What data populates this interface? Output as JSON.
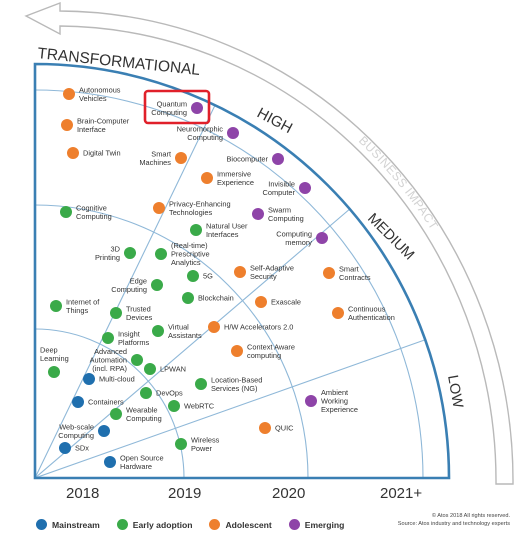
{
  "diagram": {
    "maturity_levels": {
      "transformational": "TRANSFORMATIONAL",
      "high": "HIGH",
      "medium": "MEDIUM",
      "low": "LOW"
    },
    "business_impact_label": "BUSINESS IMPACT",
    "years": [
      "2018",
      "2019",
      "2020",
      "2021+"
    ],
    "colors": {
      "mainstream": "#1f6fae",
      "early_adoption": "#3aaa49",
      "adolescent": "#ee7f2d",
      "emerging": "#8e44a8",
      "highlight_box": "#e0202a",
      "frame": "#3a7fb3",
      "grid": "#8fb8d8"
    },
    "technologies": [
      {
        "name": "Autonomous Vehicles",
        "lines": [
          "Autonomous",
          "Vehicles"
        ],
        "category": "adolescent"
      },
      {
        "name": "Brain-Computer Interface",
        "lines": [
          "Brain-Computer",
          "Interface"
        ],
        "category": "adolescent"
      },
      {
        "name": "Digital Twin",
        "lines": [
          "Digital Twin"
        ],
        "category": "adolescent"
      },
      {
        "name": "Quantum Computing",
        "lines": [
          "Quantum",
          "Computing"
        ],
        "category": "emerging",
        "highlighted": true
      },
      {
        "name": "Neuromorphic Computing",
        "lines": [
          "Neuromorphic",
          "Computing"
        ],
        "category": "emerging"
      },
      {
        "name": "Smart Machines",
        "lines": [
          "Smart",
          "Machines"
        ],
        "category": "adolescent"
      },
      {
        "name": "Biocomputer",
        "lines": [
          "Biocomputer"
        ],
        "category": "emerging"
      },
      {
        "name": "Immersive Experience",
        "lines": [
          "Immersive",
          "Experience"
        ],
        "category": "adolescent"
      },
      {
        "name": "Invisible Computer",
        "lines": [
          "Invisible",
          "Computer"
        ],
        "category": "emerging"
      },
      {
        "name": "Cognitive Computing",
        "lines": [
          "Cognitive",
          "Computing"
        ],
        "category": "early_adoption"
      },
      {
        "name": "Privacy-Enhancing Technologies",
        "lines": [
          "Privacy-Enhancing",
          "Technologies"
        ],
        "category": "adolescent"
      },
      {
        "name": "Swarm Computing",
        "lines": [
          "Swarm",
          "Computing"
        ],
        "category": "emerging"
      },
      {
        "name": "Natural User Interfaces",
        "lines": [
          "Natural User",
          "Interfaces"
        ],
        "category": "early_adoption"
      },
      {
        "name": "Computing memory",
        "lines": [
          "Computing",
          "memory"
        ],
        "category": "emerging"
      },
      {
        "name": "3D Printing",
        "lines": [
          "3D",
          "Printing"
        ],
        "category": "early_adoption"
      },
      {
        "name": "(Real-time) Prescriptive Analytics",
        "lines": [
          "(Real-time)",
          "Prescriptive",
          "Analytics"
        ],
        "category": "early_adoption"
      },
      {
        "name": "5G",
        "lines": [
          "5G"
        ],
        "category": "early_adoption"
      },
      {
        "name": "Self-Adaptive Security",
        "lines": [
          "Self-Adaptive",
          "Security"
        ],
        "category": "adolescent"
      },
      {
        "name": "Smart Contracts",
        "lines": [
          "Smart",
          "Contracts"
        ],
        "category": "adolescent"
      },
      {
        "name": "Edge Computing",
        "lines": [
          "Edge",
          "Computing"
        ],
        "category": "early_adoption"
      },
      {
        "name": "Blockchain",
        "lines": [
          "Blockchain"
        ],
        "category": "early_adoption"
      },
      {
        "name": "Exascale",
        "lines": [
          "Exascale"
        ],
        "category": "adolescent"
      },
      {
        "name": "Internet of Things",
        "lines": [
          "Internet of",
          "Things"
        ],
        "category": "early_adoption"
      },
      {
        "name": "Trusted Devices",
        "lines": [
          "Trusted",
          "Devices"
        ],
        "category": "early_adoption"
      },
      {
        "name": "Continuous Authentication",
        "lines": [
          "Continuous",
          "Authentication"
        ],
        "category": "adolescent"
      },
      {
        "name": "Insight Platforms",
        "lines": [
          "Insight",
          "Platforms"
        ],
        "category": "early_adoption"
      },
      {
        "name": "Virtual Assistants",
        "lines": [
          "Virtual",
          "Assistants"
        ],
        "category": "early_adoption"
      },
      {
        "name": "H/W Accelerators 2.0",
        "lines": [
          "H/W Accelerators 2.0"
        ],
        "category": "adolescent"
      },
      {
        "name": "Context Aware computing",
        "lines": [
          "Context Aware",
          "computing"
        ],
        "category": "adolescent"
      },
      {
        "name": "Advanced Automation (incl. RPA)",
        "lines": [
          "Advanced",
          "Automation",
          "(incl. RPA)"
        ],
        "category": "early_adoption"
      },
      {
        "name": "Deep Learning",
        "lines": [
          "Deep",
          "Learning"
        ],
        "category": "early_adoption"
      },
      {
        "name": "LPWAN",
        "lines": [
          "LPWAN"
        ],
        "category": "early_adoption"
      },
      {
        "name": "Multi-cloud",
        "lines": [
          "Multi-cloud"
        ],
        "category": "mainstream"
      },
      {
        "name": "Location-Based Services (NG)",
        "lines": [
          "Location-Based",
          "Services (NG)"
        ],
        "category": "early_adoption"
      },
      {
        "name": "DevOps",
        "lines": [
          "DevOps"
        ],
        "category": "early_adoption"
      },
      {
        "name": "Ambient Working Experience",
        "lines": [
          "Ambient",
          "Working",
          "Experience"
        ],
        "category": "emerging"
      },
      {
        "name": "Containers",
        "lines": [
          "Containers"
        ],
        "category": "mainstream"
      },
      {
        "name": "WebRTC",
        "lines": [
          "WebRTC"
        ],
        "category": "early_adoption"
      },
      {
        "name": "Wearable Computing",
        "lines": [
          "Wearable",
          "Computing"
        ],
        "category": "early_adoption"
      },
      {
        "name": "Web-scale Computing",
        "lines": [
          "Web-scale",
          "Computing"
        ],
        "category": "mainstream"
      },
      {
        "name": "QUIC",
        "lines": [
          "QUIC"
        ],
        "category": "adolescent"
      },
      {
        "name": "Wireless Power",
        "lines": [
          "Wireless",
          "Power"
        ],
        "category": "early_adoption"
      },
      {
        "name": "SDx",
        "lines": [
          "SDx"
        ],
        "category": "mainstream"
      },
      {
        "name": "Open Source Hardware",
        "lines": [
          "Open Source",
          "Hardware"
        ],
        "category": "mainstream"
      }
    ]
  },
  "legend": [
    {
      "key": "mainstream",
      "label": "Mainstream"
    },
    {
      "key": "early_adoption",
      "label": "Early adoption"
    },
    {
      "key": "adolescent",
      "label": "Adolescent"
    },
    {
      "key": "emerging",
      "label": "Emerging"
    }
  ],
  "footnote": {
    "copyright": "© Atos 2018 All rights reserved.",
    "source": "Source: Atos industry and technology experts"
  }
}
